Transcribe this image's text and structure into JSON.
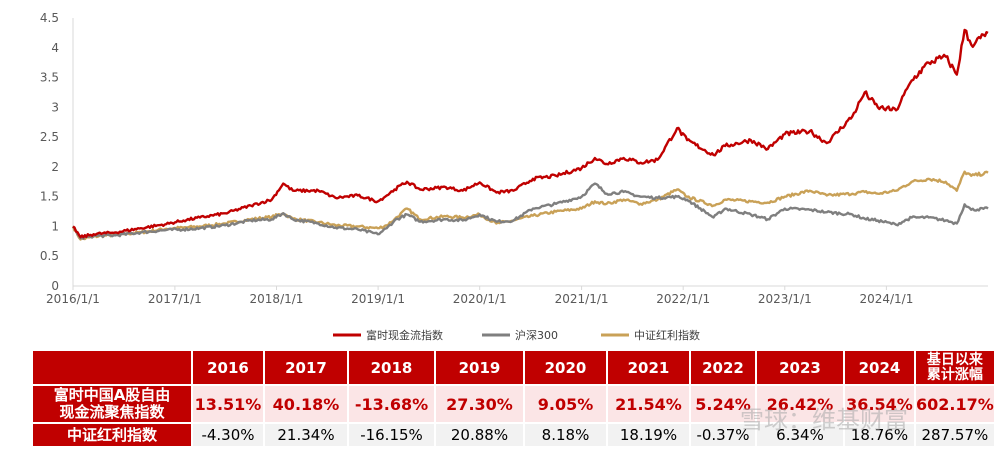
{
  "chart_data": {
    "type": "line",
    "x_ticks": [
      "2016/1/1",
      "2017/1/1",
      "2018/1/1",
      "2019/1/1",
      "2020/1/1",
      "2021/1/1",
      "2022/1/1",
      "2023/1/1",
      "2024/1/1"
    ],
    "y_ticks": [
      "0",
      "0.5",
      "1",
      "1.5",
      "2",
      "2.5",
      "3",
      "3.5",
      "4",
      "4.5"
    ],
    "ylim": [
      0,
      4.5
    ],
    "xlim": [
      "2016-01-01",
      "2024-12-31"
    ],
    "grid": false,
    "legend_position": "bottom",
    "series": [
      {
        "name": "富时现金流指数",
        "color": "#c00000",
        "points": [
          [
            "2016-01-01",
            1.0
          ],
          [
            "2016-01-28",
            0.82
          ],
          [
            "2016-03-15",
            0.87
          ],
          [
            "2016-06-01",
            0.9
          ],
          [
            "2016-09-01",
            0.97
          ],
          [
            "2016-12-01",
            1.04
          ],
          [
            "2017-02-01",
            1.1
          ],
          [
            "2017-04-01",
            1.15
          ],
          [
            "2017-07-01",
            1.22
          ],
          [
            "2017-10-01",
            1.35
          ],
          [
            "2017-12-15",
            1.45
          ],
          [
            "2018-01-25",
            1.72
          ],
          [
            "2018-03-01",
            1.6
          ],
          [
            "2018-06-01",
            1.6
          ],
          [
            "2018-08-01",
            1.48
          ],
          [
            "2018-10-20",
            1.52
          ],
          [
            "2018-12-31",
            1.42
          ],
          [
            "2019-02-01",
            1.52
          ],
          [
            "2019-03-01",
            1.62
          ],
          [
            "2019-04-15",
            1.75
          ],
          [
            "2019-06-01",
            1.62
          ],
          [
            "2019-09-01",
            1.66
          ],
          [
            "2019-11-01",
            1.6
          ],
          [
            "2020-01-01",
            1.74
          ],
          [
            "2020-03-01",
            1.57
          ],
          [
            "2020-05-01",
            1.6
          ],
          [
            "2020-07-10",
            1.8
          ],
          [
            "2020-10-01",
            1.85
          ],
          [
            "2021-01-01",
            1.98
          ],
          [
            "2021-02-18",
            2.15
          ],
          [
            "2021-04-01",
            2.05
          ],
          [
            "2021-06-01",
            2.15
          ],
          [
            "2021-08-01",
            2.07
          ],
          [
            "2021-10-01",
            2.12
          ],
          [
            "2021-12-10",
            2.65
          ],
          [
            "2022-01-15",
            2.45
          ],
          [
            "2022-04-20",
            2.2
          ],
          [
            "2022-06-01",
            2.35
          ],
          [
            "2022-09-01",
            2.45
          ],
          [
            "2022-11-01",
            2.3
          ],
          [
            "2023-01-01",
            2.55
          ],
          [
            "2023-04-01",
            2.6
          ],
          [
            "2023-06-01",
            2.4
          ],
          [
            "2023-09-01",
            2.85
          ],
          [
            "2023-10-15",
            3.25
          ],
          [
            "2023-12-01",
            3.0
          ],
          [
            "2024-02-05",
            2.95
          ],
          [
            "2024-04-01",
            3.45
          ],
          [
            "2024-06-01",
            3.75
          ],
          [
            "2024-08-01",
            3.85
          ],
          [
            "2024-09-10",
            3.55
          ],
          [
            "2024-10-08",
            4.3
          ],
          [
            "2024-11-01",
            4.05
          ],
          [
            "2024-12-31",
            4.25
          ]
        ]
      },
      {
        "name": "沪深300",
        "color": "#7f7f7f",
        "points": [
          [
            "2016-01-01",
            1.0
          ],
          [
            "2016-01-28",
            0.8
          ],
          [
            "2016-03-15",
            0.84
          ],
          [
            "2016-06-01",
            0.85
          ],
          [
            "2016-09-01",
            0.9
          ],
          [
            "2016-12-01",
            0.94
          ],
          [
            "2017-02-01",
            0.95
          ],
          [
            "2017-04-01",
            0.97
          ],
          [
            "2017-07-01",
            1.02
          ],
          [
            "2017-10-01",
            1.1
          ],
          [
            "2017-12-15",
            1.12
          ],
          [
            "2018-01-25",
            1.22
          ],
          [
            "2018-03-01",
            1.12
          ],
          [
            "2018-06-01",
            1.05
          ],
          [
            "2018-08-01",
            0.98
          ],
          [
            "2018-10-20",
            0.95
          ],
          [
            "2018-12-31",
            0.87
          ],
          [
            "2019-02-01",
            0.97
          ],
          [
            "2019-03-01",
            1.1
          ],
          [
            "2019-04-15",
            1.2
          ],
          [
            "2019-06-01",
            1.08
          ],
          [
            "2019-09-01",
            1.12
          ],
          [
            "2019-11-01",
            1.1
          ],
          [
            "2020-01-01",
            1.2
          ],
          [
            "2020-03-01",
            1.08
          ],
          [
            "2020-05-01",
            1.1
          ],
          [
            "2020-07-10",
            1.3
          ],
          [
            "2020-10-01",
            1.38
          ],
          [
            "2021-01-01",
            1.5
          ],
          [
            "2021-02-18",
            1.72
          ],
          [
            "2021-04-01",
            1.55
          ],
          [
            "2021-06-01",
            1.58
          ],
          [
            "2021-08-01",
            1.5
          ],
          [
            "2021-10-01",
            1.48
          ],
          [
            "2021-12-10",
            1.5
          ],
          [
            "2022-01-15",
            1.45
          ],
          [
            "2022-04-20",
            1.15
          ],
          [
            "2022-06-01",
            1.3
          ],
          [
            "2022-09-01",
            1.2
          ],
          [
            "2022-11-01",
            1.12
          ],
          [
            "2023-01-01",
            1.3
          ],
          [
            "2023-04-01",
            1.28
          ],
          [
            "2023-06-01",
            1.24
          ],
          [
            "2023-09-01",
            1.2
          ],
          [
            "2023-10-15",
            1.13
          ],
          [
            "2023-12-01",
            1.1
          ],
          [
            "2024-02-05",
            1.03
          ],
          [
            "2024-04-01",
            1.15
          ],
          [
            "2024-06-01",
            1.15
          ],
          [
            "2024-08-01",
            1.1
          ],
          [
            "2024-09-10",
            1.05
          ],
          [
            "2024-10-08",
            1.37
          ],
          [
            "2024-11-01",
            1.28
          ],
          [
            "2024-12-31",
            1.3
          ]
        ]
      },
      {
        "name": "中证红利指数",
        "color": "#c9a157",
        "points": [
          [
            "2016-01-01",
            1.0
          ],
          [
            "2016-01-28",
            0.78
          ],
          [
            "2016-03-15",
            0.83
          ],
          [
            "2016-06-01",
            0.86
          ],
          [
            "2016-09-01",
            0.9
          ],
          [
            "2016-12-01",
            0.96
          ],
          [
            "2017-02-01",
            0.98
          ],
          [
            "2017-04-01",
            1.0
          ],
          [
            "2017-07-01",
            1.05
          ],
          [
            "2017-10-01",
            1.12
          ],
          [
            "2017-12-15",
            1.16
          ],
          [
            "2018-01-25",
            1.22
          ],
          [
            "2018-03-01",
            1.13
          ],
          [
            "2018-06-01",
            1.07
          ],
          [
            "2018-08-01",
            1.02
          ],
          [
            "2018-10-20",
            1.0
          ],
          [
            "2018-12-31",
            0.97
          ],
          [
            "2019-02-01",
            1.02
          ],
          [
            "2019-03-01",
            1.12
          ],
          [
            "2019-04-15",
            1.3
          ],
          [
            "2019-06-01",
            1.12
          ],
          [
            "2019-09-01",
            1.17
          ],
          [
            "2019-11-01",
            1.15
          ],
          [
            "2020-01-01",
            1.2
          ],
          [
            "2020-03-01",
            1.05
          ],
          [
            "2020-05-01",
            1.1
          ],
          [
            "2020-07-10",
            1.18
          ],
          [
            "2020-10-01",
            1.25
          ],
          [
            "2021-01-01",
            1.3
          ],
          [
            "2021-02-18",
            1.42
          ],
          [
            "2021-04-01",
            1.38
          ],
          [
            "2021-06-01",
            1.45
          ],
          [
            "2021-08-01",
            1.38
          ],
          [
            "2021-10-01",
            1.45
          ],
          [
            "2021-12-10",
            1.62
          ],
          [
            "2022-01-15",
            1.5
          ],
          [
            "2022-04-20",
            1.35
          ],
          [
            "2022-06-01",
            1.45
          ],
          [
            "2022-09-01",
            1.42
          ],
          [
            "2022-11-01",
            1.4
          ],
          [
            "2023-01-01",
            1.5
          ],
          [
            "2023-04-01",
            1.6
          ],
          [
            "2023-06-01",
            1.52
          ],
          [
            "2023-09-01",
            1.55
          ],
          [
            "2023-10-15",
            1.58
          ],
          [
            "2023-12-01",
            1.55
          ],
          [
            "2024-02-05",
            1.6
          ],
          [
            "2024-04-01",
            1.75
          ],
          [
            "2024-06-01",
            1.8
          ],
          [
            "2024-08-01",
            1.75
          ],
          [
            "2024-09-10",
            1.6
          ],
          [
            "2024-10-08",
            1.92
          ],
          [
            "2024-11-01",
            1.85
          ],
          [
            "2024-12-31",
            1.9
          ]
        ]
      }
    ]
  },
  "table": {
    "years": [
      "2016",
      "2017",
      "2018",
      "2019",
      "2020",
      "2021",
      "2022",
      "2023",
      "2024"
    ],
    "last_header_line1": "基日以来",
    "last_header_line2": "累计涨幅",
    "row1_label_line1": "富时中国A股自由",
    "row1_label_line2": "现金流聚焦指数",
    "row1_values": [
      "13.51%",
      "40.18%",
      "-13.68%",
      "27.30%",
      "9.05%",
      "21.54%",
      "5.24%",
      "26.42%",
      "36.54%",
      "602.17%"
    ],
    "row2_label": "中证红利指数",
    "row2_values": [
      "-4.30%",
      "21.34%",
      "-16.15%",
      "20.88%",
      "8.18%",
      "18.19%",
      "-0.37%",
      "6.34%",
      "18.76%",
      "287.57%"
    ]
  },
  "watermark": "雪球：维基财富"
}
